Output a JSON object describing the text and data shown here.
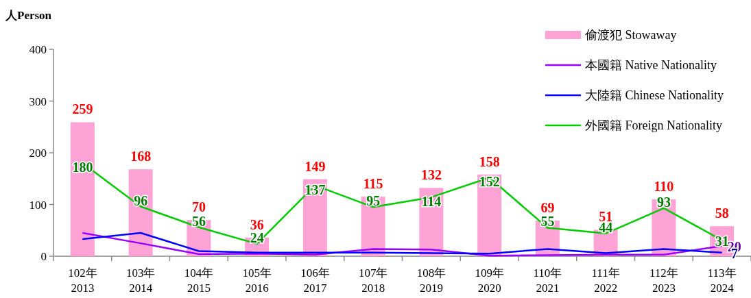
{
  "chart_data": {
    "type": "bar",
    "ylabel": "人Person",
    "categories": [
      "102年\n2013",
      "103年\n2014",
      "104年\n2015",
      "105年\n2016",
      "106年\n2017",
      "107年\n2018",
      "108年\n2019",
      "109年\n2020",
      "110年\n2021",
      "111年\n2022",
      "112年\n2023",
      "113年\n2024"
    ],
    "ylim": [
      0,
      400
    ],
    "yticks": [
      0,
      100,
      200,
      300,
      400
    ],
    "grid": false,
    "legend": "top right",
    "series": [
      {
        "name": "偷渡犯 Stowaway",
        "color": "#ffa3d7",
        "values": [
          259,
          168,
          70,
          36,
          149,
          115,
          132,
          158,
          69,
          51,
          110,
          58
        ],
        "value_labels": [
          "259",
          "168",
          "70",
          "36",
          "149",
          "115",
          "132",
          "158",
          "69",
          "51",
          "110",
          "58"
        ]
      },
      {
        "name": "本國籍 Native Nationality",
        "type": "line",
        "color": "#9900ff",
        "values": [
          45,
          25,
          4,
          5,
          3,
          14,
          13,
          1,
          2,
          3,
          3,
          20
        ],
        "value_labels": [
          null,
          null,
          null,
          null,
          null,
          null,
          null,
          null,
          null,
          null,
          null,
          "20"
        ]
      },
      {
        "name": "大陸籍 Chinese Nationality",
        "type": "line",
        "color": "#0000ff",
        "values": [
          33,
          45,
          10,
          7,
          7,
          7,
          6,
          5,
          14,
          6,
          14,
          7
        ],
        "value_labels": [
          null,
          null,
          null,
          null,
          null,
          null,
          null,
          null,
          null,
          null,
          null,
          "7"
        ]
      },
      {
        "name": "外國籍 Foreign  Nationality",
        "type": "line",
        "color": "#00cc00",
        "values": [
          180,
          96,
          56,
          24,
          137,
          95,
          114,
          152,
          55,
          44,
          93,
          31
        ],
        "value_labels": [
          "180",
          "96",
          "56",
          "24",
          "137",
          "95",
          "114",
          "152",
          "55",
          "44",
          "93",
          "31"
        ]
      }
    ]
  }
}
